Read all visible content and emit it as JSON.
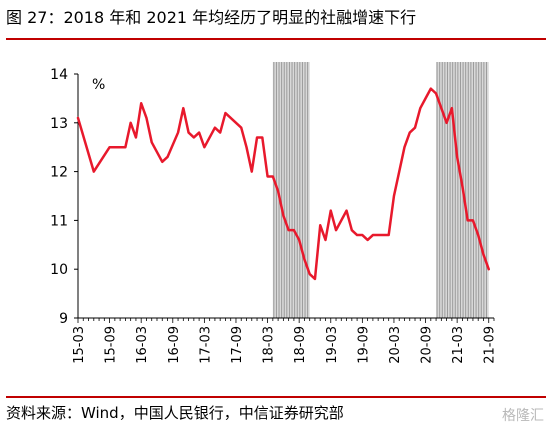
{
  "header": {
    "title": "图 27：2018 年和 2021 年均经历了明显的社融增速下行"
  },
  "footer": {
    "source": "资料来源：Wind，中国人民银行，中信证券研究部",
    "watermark": "格隆汇"
  },
  "colors": {
    "accent": "#c00000",
    "line": "#e8192c",
    "shade": "#9a9a9a"
  },
  "chart_data": {
    "type": "line",
    "title": "",
    "ylabel": "%",
    "xlabel": "",
    "ylim": [
      9,
      14
    ],
    "yticks": [
      9,
      10,
      11,
      12,
      13,
      14
    ],
    "x_range": [
      "2015-03",
      "2021-10"
    ],
    "xtick_labels": [
      "15-03",
      "15-09",
      "16-03",
      "16-09",
      "17-03",
      "17-09",
      "18-03",
      "18-09",
      "19-03",
      "19-09",
      "20-03",
      "20-09",
      "21-03",
      "21-09"
    ],
    "shaded_periods": [
      [
        "2018-04",
        "2018-11"
      ],
      [
        "2020-11",
        "2021-09"
      ]
    ],
    "grid": false,
    "legend": "none",
    "series": [
      {
        "name": "",
        "points": [
          [
            "2015-03",
            13.1
          ],
          [
            "2015-06",
            12.0
          ],
          [
            "2015-09",
            12.5
          ],
          [
            "2015-12",
            12.5
          ],
          [
            "2016-01",
            13.0
          ],
          [
            "2016-02",
            12.7
          ],
          [
            "2016-03",
            13.4
          ],
          [
            "2016-04",
            13.1
          ],
          [
            "2016-05",
            12.6
          ],
          [
            "2016-07",
            12.2
          ],
          [
            "2016-08",
            12.3
          ],
          [
            "2016-10",
            12.8
          ],
          [
            "2016-11",
            13.3
          ],
          [
            "2016-12",
            12.8
          ],
          [
            "2017-01",
            12.7
          ],
          [
            "2017-02",
            12.8
          ],
          [
            "2017-03",
            12.5
          ],
          [
            "2017-05",
            12.9
          ],
          [
            "2017-06",
            12.8
          ],
          [
            "2017-07",
            13.2
          ],
          [
            "2017-10",
            12.9
          ],
          [
            "2017-11",
            12.5
          ],
          [
            "2017-12",
            12.0
          ],
          [
            "2018-01",
            12.7
          ],
          [
            "2018-02",
            12.7
          ],
          [
            "2018-03",
            11.9
          ],
          [
            "2018-04",
            11.9
          ],
          [
            "2018-05",
            11.6
          ],
          [
            "2018-06",
            11.1
          ],
          [
            "2018-07",
            10.8
          ],
          [
            "2018-08",
            10.8
          ],
          [
            "2018-09",
            10.6
          ],
          [
            "2018-10",
            10.2
          ],
          [
            "2018-11",
            9.9
          ],
          [
            "2018-12",
            9.8
          ],
          [
            "2019-01",
            10.9
          ],
          [
            "2019-02",
            10.6
          ],
          [
            "2019-03",
            11.2
          ],
          [
            "2019-04",
            10.8
          ],
          [
            "2019-06",
            11.2
          ],
          [
            "2019-07",
            10.8
          ],
          [
            "2019-08",
            10.7
          ],
          [
            "2019-09",
            10.7
          ],
          [
            "2019-10",
            10.6
          ],
          [
            "2019-11",
            10.7
          ],
          [
            "2019-12",
            10.7
          ],
          [
            "2020-01",
            10.7
          ],
          [
            "2020-02",
            10.7
          ],
          [
            "2020-03",
            11.5
          ],
          [
            "2020-04",
            12.0
          ],
          [
            "2020-05",
            12.5
          ],
          [
            "2020-06",
            12.8
          ],
          [
            "2020-07",
            12.9
          ],
          [
            "2020-08",
            13.3
          ],
          [
            "2020-09",
            13.5
          ],
          [
            "2020-10",
            13.7
          ],
          [
            "2020-11",
            13.6
          ],
          [
            "2020-12",
            13.3
          ],
          [
            "2021-01",
            13.0
          ],
          [
            "2021-02",
            13.3
          ],
          [
            "2021-03",
            12.3
          ],
          [
            "2021-04",
            11.7
          ],
          [
            "2021-05",
            11.0
          ],
          [
            "2021-06",
            11.0
          ],
          [
            "2021-07",
            10.7
          ],
          [
            "2021-08",
            10.3
          ],
          [
            "2021-09",
            10.0
          ]
        ]
      }
    ]
  }
}
